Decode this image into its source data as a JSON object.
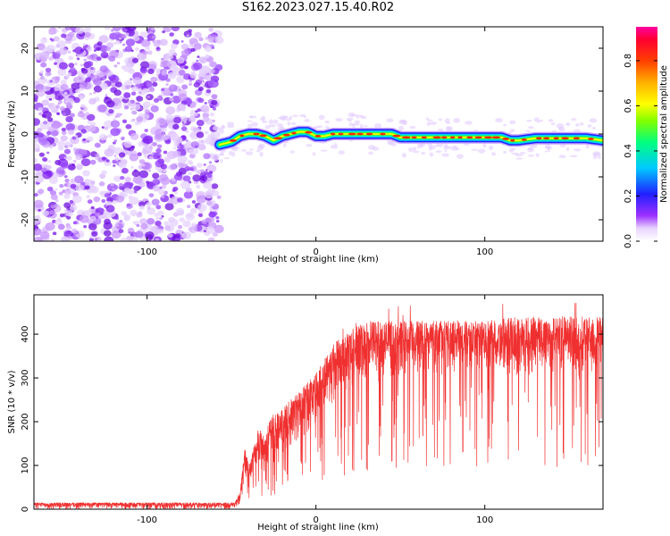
{
  "page_title": "S162.2023.027.15.40.R02",
  "chart_data": [
    {
      "type": "heatmap",
      "xlabel": "Height of straight line (km)",
      "ylabel": "Frequency (Hz)",
      "xlim": [
        -167,
        170
      ],
      "ylim": [
        -25,
        25
      ],
      "xticks": [
        -100,
        0,
        100
      ],
      "xtick_labels": [
        "-100",
        "0",
        "100"
      ],
      "yticks": [
        -20,
        -10,
        0,
        10,
        20
      ],
      "ytick_labels": [
        "-20",
        "-10",
        "0",
        "10",
        "20"
      ],
      "noise_region_x": [
        -167,
        -57
      ],
      "signal_track": {
        "x": [
          -57,
          -50,
          -45,
          -40,
          -35,
          -30,
          -25,
          -20,
          -15,
          -10,
          -5,
          0,
          5,
          10,
          15,
          20,
          25,
          30,
          35,
          40,
          45,
          50,
          60,
          70,
          80,
          90,
          100,
          110,
          115,
          120,
          130,
          140,
          150,
          160,
          170
        ],
        "y": [
          -2.5,
          -1.8,
          -0.5,
          0.0,
          0.0,
          -0.5,
          -1.5,
          -0.5,
          0.0,
          0.5,
          0.5,
          -0.5,
          -0.5,
          0.0,
          0.0,
          0.0,
          0.0,
          0.0,
          0.0,
          0.0,
          0.0,
          -0.8,
          -0.8,
          -0.8,
          -0.8,
          -0.8,
          -0.8,
          -0.8,
          -1.5,
          -1.5,
          -1.0,
          -1.0,
          -1.0,
          -1.0,
          -1.5
        ]
      },
      "colorbar": {
        "label": "Normalized spectral amplitude",
        "range": [
          0.0,
          0.95
        ],
        "ticks": [
          0.0,
          0.2,
          0.4,
          0.6,
          0.8
        ],
        "tick_labels": [
          "0.0",
          "0.2",
          "0.4",
          "0.6",
          "0.8"
        ]
      },
      "grid": false
    },
    {
      "type": "line",
      "xlabel": "Height of straight line (km)",
      "ylabel": "SNR (10 * v/v)",
      "xlim": [
        -167,
        170
      ],
      "ylim": [
        0,
        490
      ],
      "xticks": [
        -100,
        0,
        100
      ],
      "xtick_labels": [
        "-100",
        "0",
        "100"
      ],
      "yticks": [
        0,
        100,
        200,
        300,
        400
      ],
      "ytick_labels": [
        "0",
        "100",
        "200",
        "300",
        "400"
      ],
      "line_color": "#f03030",
      "envelope": {
        "x": [
          -167,
          -48,
          -45,
          -42,
          -40,
          -38,
          -35,
          -30,
          -25,
          -20,
          -10,
          0,
          10,
          20,
          30,
          40,
          60,
          80,
          100,
          120,
          140,
          160,
          170
        ],
        "upper": [
          15,
          15,
          40,
          150,
          100,
          120,
          180,
          180,
          220,
          230,
          270,
          310,
          380,
          410,
          430,
          430,
          430,
          430,
          430,
          440,
          440,
          440,
          440
        ],
        "lower": [
          3,
          3,
          10,
          60,
          40,
          60,
          80,
          80,
          100,
          110,
          150,
          190,
          230,
          260,
          280,
          290,
          300,
          310,
          310,
          300,
          300,
          290,
          290
        ]
      },
      "grid": false
    }
  ]
}
